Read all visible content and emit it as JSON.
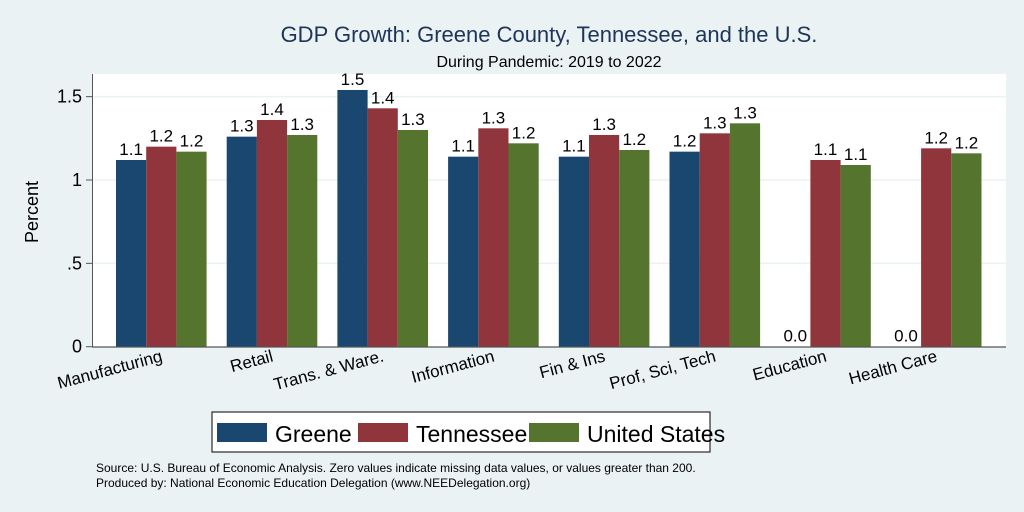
{
  "chart_data": {
    "type": "bar",
    "title": "GDP Growth: Greene County, Tennessee, and the U.S.",
    "subtitle": "During Pandemic: 2019 to 2022",
    "xlabel": "",
    "ylabel": "Percent",
    "ylim": [
      0,
      1.64
    ],
    "yticks": [
      0,
      0.5,
      1,
      1.5
    ],
    "ytick_labels": [
      "0",
      ".5",
      "1",
      "1.5"
    ],
    "grid": true,
    "legend_position": "bottom",
    "categories": [
      "Manufacturing",
      "Retail",
      "Trans. & Ware.",
      "Information",
      "Fin & Ins",
      "Prof, Sci, Tech",
      "Education",
      "Health Care"
    ],
    "series": [
      {
        "name": "Greene",
        "color": "#1a476f",
        "values": [
          1.12,
          1.26,
          1.54,
          1.14,
          1.14,
          1.17,
          0.0,
          0.0
        ],
        "labels": [
          "1.1",
          "1.3",
          "1.5",
          "1.1",
          "1.1",
          "1.2",
          "0.0",
          "0.0"
        ]
      },
      {
        "name": "Tennessee",
        "color": "#90353b",
        "values": [
          1.2,
          1.36,
          1.43,
          1.31,
          1.27,
          1.28,
          1.12,
          1.19
        ],
        "labels": [
          "1.2",
          "1.4",
          "1.4",
          "1.3",
          "1.3",
          "1.3",
          "1.1",
          "1.2"
        ]
      },
      {
        "name": "United States",
        "color": "#55752f",
        "values": [
          1.17,
          1.27,
          1.3,
          1.22,
          1.18,
          1.34,
          1.09,
          1.16
        ],
        "labels": [
          "1.2",
          "1.3",
          "1.3",
          "1.2",
          "1.2",
          "1.3",
          "1.1",
          "1.2"
        ]
      }
    ],
    "notes": [
      "Source: U.S. Bureau of Economic Analysis. Zero values indicate missing data values, or values greater than 200.",
      "Produced by: National Economic Education Delegation (www.NEEDelegation.org)"
    ]
  },
  "colors": {
    "background": "#eaf2f3",
    "plot_background": "#ffffff",
    "title": "#1e3559",
    "grid": "#eaf2f3"
  }
}
